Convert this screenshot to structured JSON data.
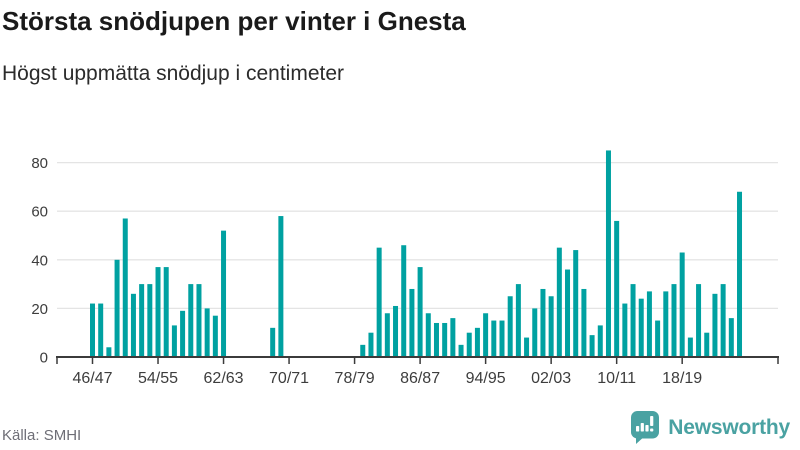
{
  "header": {
    "title": "Största snödjupen per vinter i Gnesta",
    "subtitle": "Högst uppmätta snödjup i centimeter"
  },
  "chart_data": {
    "type": "bar",
    "title": "Största snödjupen per vinter i Gnesta",
    "subtitle": "Högst uppmätta snödjup i centimeter",
    "unit": "cm",
    "xlabel": "",
    "ylabel": "",
    "grid": "horizontal",
    "legend": "none",
    "categories": [
      "46/47",
      "47/48",
      "48/49",
      "49/50",
      "50/51",
      "51/52",
      "52/53",
      "53/54",
      "54/55",
      "55/56",
      "56/57",
      "57/58",
      "58/59",
      "59/60",
      "60/61",
      "61/62",
      "62/63",
      "63/64",
      "64/65",
      "65/66",
      "66/67",
      "67/68",
      "68/69",
      "69/70",
      "70/71",
      "71/72",
      "72/73",
      "73/74",
      "74/75",
      "75/76",
      "76/77",
      "77/78",
      "78/79",
      "79/80",
      "80/81",
      "81/82",
      "82/83",
      "83/84",
      "84/85",
      "85/86",
      "86/87",
      "87/88",
      "88/89",
      "89/90",
      "90/91",
      "91/92",
      "92/93",
      "93/94",
      "94/95",
      "95/96",
      "96/97",
      "97/98",
      "98/99",
      "99/00",
      "00/01",
      "01/02",
      "02/03",
      "03/04",
      "04/05",
      "05/06",
      "06/07",
      "07/08",
      "08/09",
      "09/10",
      "10/11",
      "11/12",
      "12/13",
      "13/14",
      "14/15",
      "15/16",
      "16/17",
      "17/18",
      "18/19",
      "19/20",
      "20/21",
      "21/22",
      "22/23",
      "23/24",
      "24/25",
      "25/26"
    ],
    "values": [
      22,
      22,
      4,
      40,
      57,
      26,
      30,
      30,
      37,
      37,
      13,
      19,
      30,
      30,
      20,
      17,
      52,
      null,
      null,
      null,
      null,
      null,
      12,
      58,
      null,
      null,
      null,
      null,
      null,
      null,
      null,
      null,
      null,
      5,
      10,
      45,
      18,
      21,
      46,
      28,
      37,
      18,
      14,
      14,
      16,
      5,
      10,
      12,
      18,
      15,
      15,
      25,
      30,
      8,
      20,
      28,
      25,
      45,
      36,
      44,
      28,
      9,
      13,
      85,
      56,
      22,
      30,
      24,
      27,
      15,
      27,
      30,
      43,
      8,
      30,
      10,
      26,
      30,
      16,
      68
    ],
    "x_tick_every": 8,
    "x_tick_labels": [
      "46/47",
      "54/55",
      "62/63",
      "70/71",
      "78/79",
      "86/87",
      "94/95",
      "02/03",
      "10/11",
      "18/19"
    ],
    "y_ticks": [
      0,
      20,
      40,
      60,
      80
    ],
    "ylim": [
      0,
      87
    ]
  },
  "footer": {
    "source": "Källa: SMHI",
    "brand": "Newsworthy"
  },
  "colors": {
    "bar": "#00a1a1",
    "axis": "#3b3b3b",
    "grid": "#e4e4e4",
    "tick_label": "#3d3d3d",
    "source_text": "#6e6e76",
    "brand": "#4aa2a2"
  }
}
